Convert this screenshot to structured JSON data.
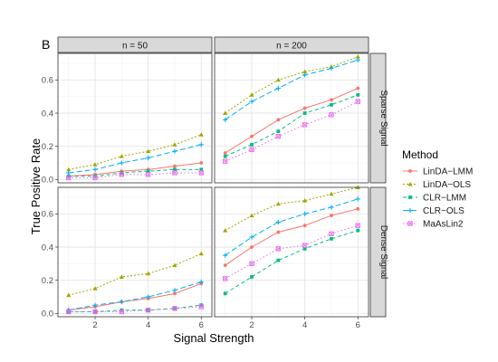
{
  "chart_data": {
    "type": "line",
    "panel_tag": "B",
    "xlabel": "Signal Strength",
    "ylabel": "True Positive Rate",
    "x": [
      1,
      2,
      3,
      4,
      5,
      6
    ],
    "xticks": [
      2,
      4,
      6
    ],
    "xlim": [
      0.6,
      6.4
    ],
    "yticks": [
      0.0,
      0.2,
      0.4,
      0.6
    ],
    "ylim": [
      -0.02,
      0.76
    ],
    "col_labels": [
      "n = 50",
      "n = 200"
    ],
    "row_labels": [
      "Sparse Signal",
      "Dense Signal"
    ],
    "legend": {
      "title": "Method",
      "position": "right",
      "entries": [
        "LinDA−LMM",
        "LinDA−OLS",
        "CLR−LMM",
        "CLR−OLS",
        "MaAsLin2"
      ]
    },
    "colors": [
      "#F8766D",
      "#A3A500",
      "#00BF7D",
      "#00B0F6",
      "#E76BF3"
    ],
    "grid": true,
    "panels": [
      {
        "row": "Sparse Signal",
        "col": "n = 50",
        "series": [
          {
            "name": "LinDA−LMM",
            "values": [
              0.02,
              0.03,
              0.05,
              0.06,
              0.08,
              0.1
            ]
          },
          {
            "name": "LinDA−OLS",
            "values": [
              0.06,
              0.09,
              0.14,
              0.17,
              0.21,
              0.27
            ]
          },
          {
            "name": "CLR−LMM",
            "values": [
              0.02,
              0.02,
              0.04,
              0.05,
              0.06,
              0.06
            ]
          },
          {
            "name": "CLR−OLS",
            "values": [
              0.04,
              0.06,
              0.1,
              0.13,
              0.17,
              0.21
            ]
          },
          {
            "name": "MaAsLin2",
            "values": [
              0.01,
              0.01,
              0.03,
              0.03,
              0.04,
              0.04
            ]
          }
        ]
      },
      {
        "row": "Sparse Signal",
        "col": "n = 200",
        "series": [
          {
            "name": "LinDA−LMM",
            "values": [
              0.16,
              0.26,
              0.36,
              0.43,
              0.48,
              0.55
            ]
          },
          {
            "name": "LinDA−OLS",
            "values": [
              0.4,
              0.51,
              0.6,
              0.65,
              0.68,
              0.74
            ]
          },
          {
            "name": "CLR−LMM",
            "values": [
              0.14,
              0.21,
              0.29,
              0.4,
              0.45,
              0.51
            ]
          },
          {
            "name": "CLR−OLS",
            "values": [
              0.36,
              0.47,
              0.55,
              0.63,
              0.67,
              0.72
            ]
          },
          {
            "name": "MaAsLin2",
            "values": [
              0.11,
              0.18,
              0.26,
              0.33,
              0.39,
              0.47
            ]
          }
        ]
      },
      {
        "row": "Dense Signal",
        "col": "n = 50",
        "series": [
          {
            "name": "LinDA−LMM",
            "values": [
              0.02,
              0.04,
              0.07,
              0.09,
              0.12,
              0.18
            ]
          },
          {
            "name": "LinDA−OLS",
            "values": [
              0.11,
              0.15,
              0.22,
              0.24,
              0.29,
              0.36
            ]
          },
          {
            "name": "CLR−LMM",
            "values": [
              0.01,
              0.01,
              0.02,
              0.02,
              0.03,
              0.05
            ]
          },
          {
            "name": "CLR−OLS",
            "values": [
              0.02,
              0.05,
              0.07,
              0.1,
              0.14,
              0.19
            ]
          },
          {
            "name": "MaAsLin2",
            "values": [
              0.01,
              0.01,
              0.01,
              0.02,
              0.03,
              0.04
            ]
          }
        ]
      },
      {
        "row": "Dense Signal",
        "col": "n = 200",
        "series": [
          {
            "name": "LinDA−LMM",
            "values": [
              0.29,
              0.4,
              0.49,
              0.53,
              0.59,
              0.63
            ]
          },
          {
            "name": "LinDA−OLS",
            "values": [
              0.5,
              0.59,
              0.66,
              0.68,
              0.72,
              0.76
            ]
          },
          {
            "name": "CLR−LMM",
            "values": [
              0.12,
              0.22,
              0.32,
              0.39,
              0.45,
              0.5
            ]
          },
          {
            "name": "CLR−OLS",
            "values": [
              0.35,
              0.46,
              0.55,
              0.6,
              0.64,
              0.69
            ]
          },
          {
            "name": "MaAsLin2",
            "values": [
              0.21,
              0.3,
              0.39,
              0.41,
              0.48,
              0.53
            ]
          }
        ]
      }
    ]
  }
}
